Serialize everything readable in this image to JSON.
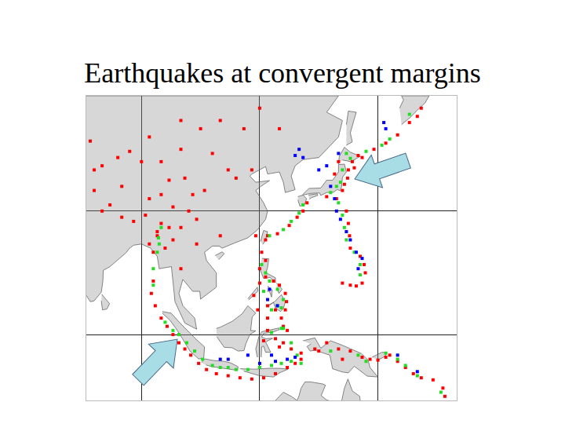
{
  "chart_data": {
    "type": "scatter",
    "title": "Earthquakes at convergent margins",
    "xlim": [
      76,
      170
    ],
    "ylim": [
      -16,
      58
    ],
    "xticks": [
      90,
      120,
      150
    ],
    "yticks": [
      0,
      30
    ],
    "grid": true,
    "tick_labels": false,
    "land": [
      {
        "x": [
          76,
          140,
          137,
          141,
          140,
          135,
          131,
          129,
          128,
          129,
          126.5,
          126,
          125,
          122,
          121.5,
          118,
          117.5,
          119,
          122.5,
          120.3,
          119,
          121,
          122,
          121.5,
          119.5,
          117,
          113.5,
          110.5,
          109.7,
          108,
          106,
          106.5,
          109,
          109,
          105,
          104.8,
          103,
          100.5,
          99.5,
          100.5,
          103.5,
          104,
          101,
          98.5,
          98.3,
          97.6,
          94.5,
          94,
          92.3,
          90,
          88,
          87,
          86,
          84,
          82,
          80.3,
          80.2,
          79.8,
          78,
          77,
          76
        ],
        "y": [
          58,
          58,
          54,
          52,
          48,
          43,
          42.5,
          41,
          38.5,
          35.2,
          34.5,
          37,
          39.5,
          39,
          40.8,
          39,
          38.5,
          37,
          37.4,
          36,
          35,
          32,
          30,
          28,
          25.5,
          23.5,
          22.2,
          21,
          21.5,
          21.5,
          20,
          18,
          15,
          11.5,
          8.6,
          10.5,
          10.5,
          13.4,
          10,
          7,
          4,
          1.3,
          2.8,
          8,
          10,
          16.5,
          16,
          19,
          21,
          22,
          21.7,
          21,
          19.8,
          18.2,
          16.5,
          15.6,
          13,
          10.3,
          8.2,
          8,
          9.5
        ]
      },
      {
        "x": [
          130.9,
          132.5,
          135.5,
          136.5,
          137,
          138.5,
          140,
          140,
          141.5,
          142,
          141,
          140.8,
          140.5,
          139.6,
          138.8,
          137,
          135.5,
          135.2,
          133,
          131
        ],
        "y": [
          34,
          35.5,
          35.6,
          37,
          37.5,
          37.5,
          39.5,
          41.3,
          41.4,
          39.5,
          38.2,
          36,
          35,
          35.2,
          34.6,
          34.5,
          33.8,
          34.4,
          34.3,
          33.9
        ]
      },
      {
        "x": [
          129.7,
          131,
          131.9,
          131.3,
          130.2,
          129.7
        ],
        "y": [
          33.5,
          33.9,
          33,
          31.4,
          31.2,
          32.7
        ]
      },
      {
        "x": [
          132.4,
          134.6,
          134.7,
          133,
          132.6
        ],
        "y": [
          33.9,
          34.2,
          33.8,
          33.2,
          32.8
        ]
      },
      {
        "x": [
          140,
          140.2,
          141.5,
          143,
          145.5,
          143.2,
          141
        ],
        "y": [
          41.4,
          43.3,
          45.5,
          44.3,
          43.3,
          42,
          42.4
        ]
      },
      {
        "x": [
          142,
          143.5,
          143,
          144.5,
          142.5,
          142
        ],
        "y": [
          46,
          46.8,
          49,
          54,
          54.3,
          51
        ]
      },
      {
        "x": [
          156,
          158.5,
          160,
          162,
          163,
          156,
          156.5,
          155.5
        ],
        "y": [
          51,
          53,
          54.5,
          56.3,
          58,
          58,
          57,
          55
        ]
      },
      {
        "x": [
          120.2,
          121,
          122,
          121.5,
          120.8
        ],
        "y": [
          22.6,
          25.3,
          25,
          23,
          21.9
        ]
      },
      {
        "x": [
          108.7,
          110.5,
          111,
          109.6
        ],
        "y": [
          19.2,
          20.1,
          19.6,
          18.2
        ]
      },
      {
        "x": [
          120.6,
          122.3,
          122,
          121.6,
          124,
          124,
          122.6,
          121,
          120.5,
          119.8
        ],
        "y": [
          18.5,
          18.4,
          16.3,
          15,
          13.8,
          12.6,
          13.9,
          13.6,
          14.8,
          16.3
        ]
      },
      {
        "x": [
          122,
          123.8,
          125.5,
          126.5,
          126,
          125.3,
          124,
          123.5,
          122.2
        ],
        "y": [
          7,
          8,
          9.7,
          8,
          6.3,
          5.6,
          6.4,
          7.8,
          6.9
        ]
      },
      {
        "x": [
          124.3,
          125.7,
          124.9,
          124.3
        ],
        "y": [
          12.5,
          11,
          10,
          11.3
        ]
      },
      {
        "x": [
          122,
          123.2,
          123,
          122.5,
          121.9
        ],
        "y": [
          11.8,
          10.8,
          9.1,
          10.5,
          10.5
        ]
      },
      {
        "x": [
          117.2,
          119.6,
          119.4,
          117
        ],
        "y": [
          8.4,
          10.6,
          11.5,
          8.7
        ]
      },
      {
        "x": [
          109,
          110,
          113,
          115.5,
          117,
          119,
          118.1,
          117.7,
          119,
          117.5,
          116.5,
          116,
          114.5,
          113,
          111,
          110,
          109.1
        ],
        "y": [
          1.5,
          1.8,
          3.2,
          5,
          7,
          5.2,
          4.3,
          1,
          0.9,
          0,
          -2.2,
          -3.9,
          -4,
          -3.2,
          -3.1,
          -1.7,
          -0.5
        ]
      },
      {
        "x": [
          119.4,
          119,
          119.8,
          120.5,
          122,
          124.9,
          125,
          123,
          121,
          120.5,
          121.5,
          123.3,
          121.5,
          122.8,
          121.5,
          121,
          120.5,
          120.4
        ],
        "y": [
          -5.5,
          -3.5,
          -0.5,
          0.7,
          1,
          1.6,
          1.2,
          0.5,
          0.3,
          -0.6,
          -1,
          -0.9,
          -1.8,
          -4.3,
          -4.3,
          -2.8,
          -3,
          -5.5
        ]
      },
      {
        "x": [
          95.3,
          97.5,
          100.3,
          103.7,
          106,
          105.8,
          104.5,
          102.3,
          100.4,
          98.6,
          97.2,
          95.3
        ],
        "y": [
          5.6,
          5.2,
          2.3,
          -1,
          -3,
          -5.8,
          -5.9,
          -4,
          -1,
          1.7,
          3.5,
          5.2
        ]
      },
      {
        "x": [
          105.2,
          106,
          108.3,
          111,
          112.7,
          114.5,
          114.4,
          111,
          108,
          106.4
        ],
        "y": [
          -6.8,
          -5.9,
          -6.3,
          -6.5,
          -6.9,
          -7.8,
          -8.7,
          -8.2,
          -7.8,
          -7.4
        ]
      },
      {
        "x": [
          115,
          119,
          122,
          125,
          127.2,
          125,
          123.5,
          120,
          116
        ],
        "y": [
          -8.3,
          -8.4,
          -8.2,
          -8.2,
          -8.4,
          -9.3,
          -10.3,
          -10,
          -8.9
        ]
      },
      {
        "x": [
          131,
          134,
          135.5,
          138,
          141,
          145.8,
          147.5,
          148,
          150,
          147.3,
          144,
          142.5,
          141,
          138.5,
          137.8,
          134,
          132.8,
          132,
          133
        ],
        "y": [
          -1.5,
          -0.8,
          -3.3,
          -1.5,
          -2.6,
          -4.6,
          -6.2,
          -8,
          -10.3,
          -10.1,
          -7.7,
          -9.3,
          -9.1,
          -8.3,
          -5,
          -3.8,
          -4,
          -2.9,
          -2.3
        ]
      },
      {
        "x": [
          148.5,
          151,
          152.3,
          151.8,
          150
        ],
        "y": [
          -5.5,
          -4.3,
          -4.4,
          -5.3,
          -6.2
        ]
      },
      {
        "x": [
          123,
          124,
          126,
          128,
          129.5,
          130,
          130.5,
          131.5,
          133,
          136,
          136.7,
          135.6,
          137,
          137.5,
          140.5,
          141.5,
          142.4,
          143.5,
          145.4,
          145.5,
          145.5
        ],
        "y": [
          -17,
          -16,
          -14,
          -15,
          -16,
          -14.8,
          -13,
          -11.5,
          -11.5,
          -12,
          -12.3,
          -14.8,
          -15.9,
          -16,
          -17.5,
          -13,
          -10.8,
          -13.7,
          -15,
          -16,
          -17
        ]
      },
      {
        "x": [
          79.9,
          81.9,
          81.2,
          80.1,
          79.8
        ],
        "y": [
          9.8,
          7.5,
          6.2,
          6,
          8.2
        ]
      }
    ],
    "series": [
      {
        "color": "#ff0000",
        "x": [
          78,
          80,
          82,
          85,
          88,
          91,
          92,
          95,
          98,
          100,
          102,
          103,
          104,
          101,
          97,
          90,
          84,
          80,
          78,
          87,
          95,
          100,
          105,
          110,
          116,
          112,
          114,
          118,
          106,
          110,
          85,
          77,
          92,
          120,
          125,
          100,
          108,
          98,
          94,
          96,
          100,
          104,
          119,
          160,
          161,
          158,
          155,
          152,
          149,
          146,
          143.5,
          142.5,
          142.3,
          141.5,
          141,
          139.5,
          137,
          132,
          131,
          129.5,
          127.5,
          124.5,
          122,
          121.5,
          140,
          139,
          144,
          145,
          142,
          142.5,
          142.8,
          143,
          145.5,
          146.5,
          146.8,
          146,
          144.5,
          143,
          141,
          120.5,
          121.5,
          120,
          121.5,
          123.5,
          125,
          126.5,
          126.8,
          126.5,
          125.5,
          124,
          122,
          119.5,
          120,
          126,
          127,
          122,
          118.5,
          93,
          92.5,
          93.5,
          95,
          96.5,
          98,
          99.5,
          101,
          102.5,
          104.5,
          106.5,
          109,
          112,
          115,
          118,
          121,
          124,
          127,
          129,
          130.5,
          130.5,
          128,
          126,
          124,
          121,
          122,
          125,
          134,
          137,
          140,
          143,
          146,
          148,
          150,
          152,
          153,
          155,
          157,
          159,
          161,
          164,
          166.5,
          167,
          92,
          94,
          95,
          97,
          93,
          135,
          141
        ],
        "y": [
          35,
          30,
          31.5,
          28.5,
          27.5,
          29,
          33,
          34,
          31,
          26,
          30,
          34,
          28,
          38,
          37.5,
          42,
          43,
          41,
          40,
          44.5,
          42,
          45,
          50,
          52,
          50,
          40,
          38,
          40,
          35,
          24,
          36,
          47,
          48,
          55,
          50,
          52,
          44,
          23,
          25,
          21,
          16,
          22,
          24,
          53,
          55,
          51.5,
          48.5,
          46.5,
          45,
          43,
          42,
          40,
          38,
          36.5,
          35,
          33,
          33.5,
          32,
          30,
          28.5,
          26.5,
          24.5,
          24,
          23,
          42,
          39,
          40.5,
          43.5,
          30,
          27,
          24,
          21,
          19,
          17,
          15,
          12.5,
          11.8,
          12,
          12.5,
          20,
          18,
          16,
          14,
          13,
          12,
          10,
          8,
          6,
          4,
          6,
          7,
          6,
          12.5,
          2,
          1,
          4,
          9.5,
          13,
          10,
          7,
          4,
          2,
          0,
          -2,
          -3.5,
          -5,
          -7,
          -8.5,
          -9.5,
          -10,
          -10.5,
          -10.8,
          -10.5,
          -9.5,
          -8,
          -7,
          -6,
          -4.5,
          -3.5,
          -2,
          -1,
          -1.5,
          1,
          -3,
          -3.5,
          -2,
          -3.5,
          -4,
          -5.5,
          -6,
          -6.2,
          -5.5,
          -5,
          -6.5,
          -8,
          -9.5,
          -10.5,
          -11,
          -13,
          -15,
          22,
          24,
          27,
          26,
          20,
          -4,
          -6
        ]
      },
      {
        "color": "#22dd22",
        "x": [
          158,
          153,
          147,
          143,
          141,
          140.5,
          139.5,
          138,
          140,
          141,
          141.5,
          142,
          144,
          145.5,
          145.5,
          131,
          130,
          128,
          126,
          122.5,
          142,
          151,
          120.5,
          121.5,
          122.5,
          124.5,
          126,
          125.5,
          124.5,
          123,
          121,
          125.5,
          94.3,
          94.5,
          94,
          95,
          93,
          93,
          96,
          98,
          99.5,
          101.5,
          103.5,
          105.5,
          108,
          110,
          112,
          114,
          117,
          120,
          123,
          125.5,
          128,
          129.5,
          128,
          123,
          126,
          138,
          145,
          147,
          152,
          155,
          157,
          160,
          166,
          130.5
        ],
        "y": [
          53.5,
          47.5,
          44.5,
          42.8,
          40,
          37,
          36,
          34.5,
          32,
          29,
          26,
          23,
          20,
          17,
          14.5,
          31.5,
          29.5,
          27.5,
          25.5,
          24,
          44,
          46,
          17,
          15,
          13,
          11,
          8.5,
          6.5,
          7,
          6,
          10.5,
          1.5,
          23.5,
          22,
          20,
          26,
          16,
          12,
          3,
          1,
          0,
          -2,
          -4,
          -6,
          -7.5,
          -8,
          -8,
          -8.5,
          -8.5,
          -8,
          -7.5,
          -7,
          -6.5,
          -5,
          -2,
          0.5,
          1.5,
          -4,
          -5,
          -6.5,
          -4.5,
          -6,
          -7.5,
          -10,
          -14,
          -7
        ]
      },
      {
        "color": "#0000ff",
        "x": [
          140,
          137,
          135,
          131,
          138,
          139,
          139.5,
          140.5,
          142,
          143,
          144.5,
          146,
          145,
          130,
          129,
          151.5,
          152,
          124.5,
          122,
          122.5,
          117,
          112,
          120,
          124,
          127,
          129,
          123,
          110,
          155,
          160
        ],
        "y": [
          44,
          41,
          40,
          43,
          36,
          33,
          30,
          28,
          25,
          23,
          20,
          18.5,
          16,
          45,
          43.5,
          51.5,
          50,
          7,
          8.5,
          11,
          -5,
          -6,
          -7,
          -6.5,
          -6,
          -5.5,
          -5,
          -6,
          -5,
          -9
        ]
      }
    ]
  }
}
